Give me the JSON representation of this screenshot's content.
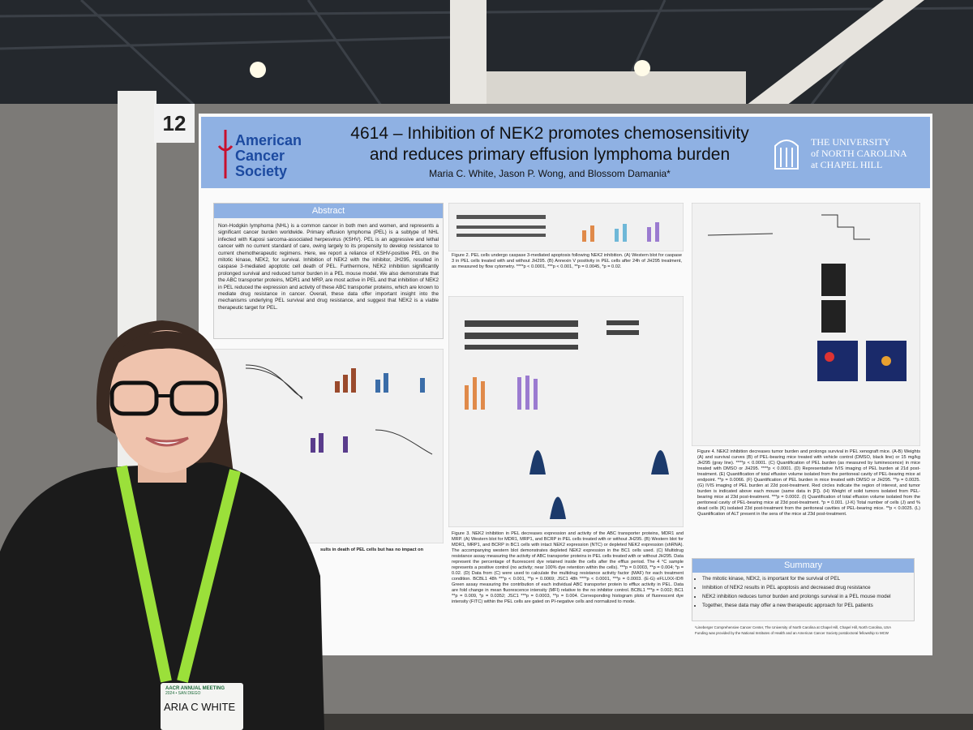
{
  "board_number": "12",
  "header": {
    "logo_left": [
      "American",
      "Cancer",
      "Society"
    ],
    "title": [
      "4614 – Inhibition of NEK2 promotes chemosensitivity",
      "and reduces primary effusion lymphoma burden"
    ],
    "authors": "Maria C. White, Jason P. Wong, and Blossom Damania*",
    "logo_right": [
      "THE UNIVERSITY",
      "of NORTH CAROLINA",
      "at CHAPEL HILL"
    ]
  },
  "abstract": {
    "heading": "Abstract",
    "text": "Non-Hodgkin lymphoma (NHL) is a common cancer in both men and women, and represents a significant cancer burden worldwide. Primary effusion lymphoma (PEL) is a subtype of NHL infected with Kaposi sarcoma-associated herpesvirus (KSHV). PEL is an aggressive and lethal cancer with no current standard of care, owing largely to its propensity to develop resistance to current chemotherapeutic regimens. Here, we report a reliance of KSHV-positive PEL on the mitotic kinase, NEK2, for survival. Inhibition of NEK2 with the inhibitor, JH295, resulted in caspase 3-mediated apoptotic cell death of PEL. Furthermore, NEK2 inhibition significantly prolonged survival and reduced tumor burden in a PEL mouse model. We also demonstrate that the ABC transporter proteins, MDR1 and MRP, are most active in PEL and that inhibition of NEK2 in PEL reduced the expression and activity of these ABC transporter proteins, which are known to mediate drug resistance in cancer. Overall, these data offer important insight into the mechanisms underlying PEL survival and drug resistance, and suggest that NEK2 is a viable therapeutic target for PEL."
  },
  "figure1_caption": "sults in death of PEL cells but has no impact on",
  "figure2_caption": "Figure 2. PEL cells undergo caspase 3-mediated apoptosis following NEK2 inhibition. (A) Western blot for caspase 3 in PEL cells treated with and without JH295. (B) Annexin V positivity in PEL cells after 24h of JH295 treatment, as measured by flow cytometry. ****p < 0.0001, ***p < 0.001, **p = 0.0045, *p = 0.02.",
  "figure3_caption": "Figure 3. NEK2 inhibition in PEL decreases expression and activity of the ABC transporter proteins, MDR1 and MRP. (A) Western blot for MDR1, MRP1, and BCRP in PEL cells treated with or without JH295. (B) Western blot for MDR1, MRP1, and BCRP in BC1 cells with intact NEK2 expression (NTC) or depleted NEK2 expression (shRNA). The accompanying western blot demonstrates depleted NEK2 expression in the BC1 cells used. (C) Multidrug resistance assay measuring the activity of ABC transporter proteins in PEL cells treated with or without JH295. Data represent the percentage of fluorescent dye retained inside the cells after the efflux period. The 4 °C sample represents a positive control (no activity; near 100% dye retention within the cells). ***p = 0.0003, **p = 0.004; *p = 0.02. (D) Data from (C) were used to calculate the multidrug resistance activity factor (MAF) for each treatment condition. BCBL1 48h ***p < 0.001, **p = 0.0069; JSC1 48h ****p < 0.0001, ***p = 0.0003. (E-G) eFLUXX-ID® Green assay measuring the contribution of each individual ABC transporter protein to efflux activity in PEL. Data are fold change in mean fluorescence intensity (MFI) relative to the no inhibitor control. BCBL1 ***p = 0.002; BC1 **p = 0.009, *p = 0.0352; JSC1 ***p = 0.0003, **p = 0.004. Corresponding histogram plots of fluorescent dye intensity (FITC) within the PEL cells are gated on PI-negative cells and normalized to mode.",
  "figure4_caption": "Figure 4. NEK2 inhibition decreases tumor burden and prolongs survival in PEL xenograft mice. (A-B) Weights (A) and survival curves (B) of PEL-bearing mice treated with vehicle control (DMSO, black line) or 15 mg/kg JH295 (gray line). ****p < 0.0001. (C) Quantification of PEL burden (as measured by luminescence) in mice treated with DMSO or JH295. ****p < 0.0001. (D) Representative IVIS imaging of PEL burden at 21d post-treatment. (E) Quantification of total effusion volume isolated from the peritoneal cavity of PEL-bearing mice at endpoint. **p = 0.0066. (F) Quantification of PEL burden in mice treated with DMSO or JH295. **p = 0.0025. (G) IVIS imaging of PEL burden at 22d post-treatment. Red circles indicate the region of interest, and tumor burden is indicated above each mouse (same data in [F]). (H) Weight of solid tumors isolated from PEL-bearing mice at 23d post-treatment. ***p = 0.0002. (I) Quantification of total effusion volume isolated from the peritoneal cavity of PEL-bearing mice at 23d post-treatment. *p = 0.001. (J-K) Total number of cells (J) and % dead cells (K) isolated 23d post-treatment from the peritoneal cavities of PEL-bearing mice. **p < 0.0025. (L) Quantification of ALT present in the sera of the mice at 23d post-treatment.",
  "summary": {
    "heading": "Summary",
    "items": [
      "The mitotic kinase, NEK2, is important for the survival of PEL",
      "Inhibition of NEK2 results in PEL apoptosis and decreased drug resistance",
      "NEK2 inhibition reduces tumor burden and prolongs survival in a PEL mouse model",
      "Together, these data may offer a new therapeutic approach for PEL patients"
    ]
  },
  "footnotes": [
    "¹Lineberger Comprehensive Cancer Center, The University of North Carolina at Chapel Hill, Chapel Hill, North Carolina, USA",
    "Funding was provided by the National Institutes of Health and an American Cancer Society postdoctoral fellowship to MCW"
  ],
  "badge": {
    "event": [
      "AACR ANNUAL MEETING",
      "2024 • SAN DIEGO"
    ],
    "name": "ARIA C WHITE"
  }
}
